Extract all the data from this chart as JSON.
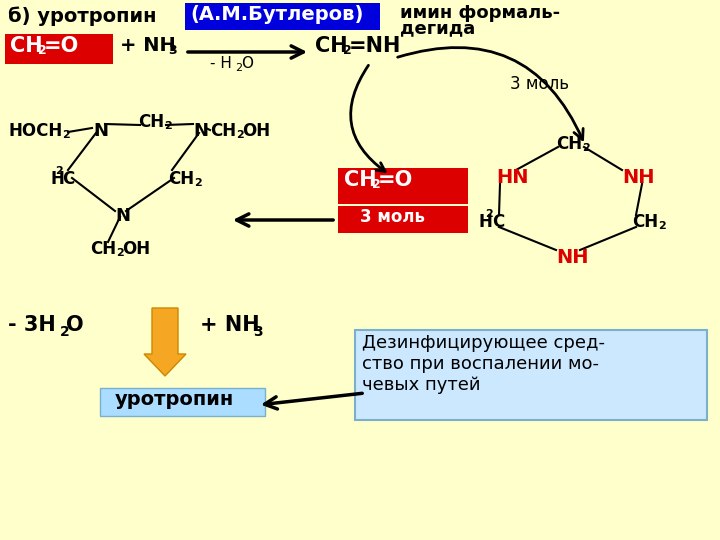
{
  "bg_color": "#ffffcc",
  "title_text": "б) уротропин",
  "author_text": "(А.М.Бутлеров)",
  "author_bg": "#0000dd",
  "author_fg": "#ffffff",
  "imine_line1": "имин формаль-",
  "imine_line2": "дегида",
  "ch2o_bg": "#dd0000",
  "ch2o_fg": "#ffffff",
  "mol3": "3 моль",
  "minus_3h2o": "- 3H",
  "plus_nh3_bot": "+ NH",
  "urotropin_label": "уротропин",
  "urotropin_bg": "#aaddff",
  "info_text": "Дезинфицирующее сред-\nство при воспалении мо-\nчевых путей",
  "info_bg": "#cce8ff",
  "red": "#dd0000",
  "black": "#000000",
  "orange": "#f5a623",
  "orange_edge": "#cc8800"
}
